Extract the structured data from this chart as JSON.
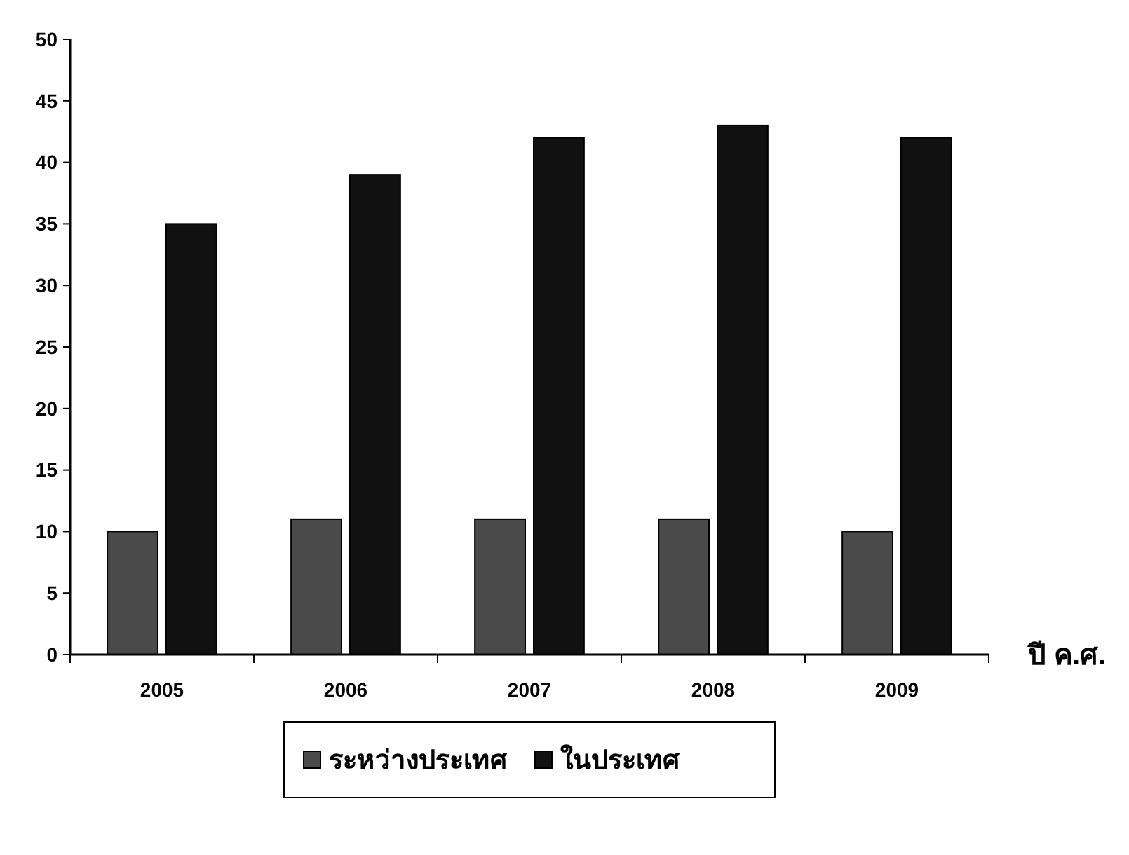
{
  "chart_data": {
    "type": "bar",
    "xlabel": "ปี ค.ศ.",
    "categories": [
      "2005",
      "2006",
      "2007",
      "2008",
      "2009"
    ],
    "series": [
      {
        "name": "ระหว่างประเทศ",
        "color": "#4a4a4a",
        "values": [
          10,
          11,
          11,
          11,
          10
        ]
      },
      {
        "name": "ในประเทศ",
        "color": "#111111",
        "values": [
          35,
          39,
          42,
          43,
          42
        ]
      }
    ],
    "ylim": [
      0,
      50
    ],
    "yticks": [
      0,
      5,
      10,
      15,
      20,
      25,
      30,
      35,
      40,
      45,
      50
    ],
    "grid": false,
    "legend": "bottom"
  }
}
